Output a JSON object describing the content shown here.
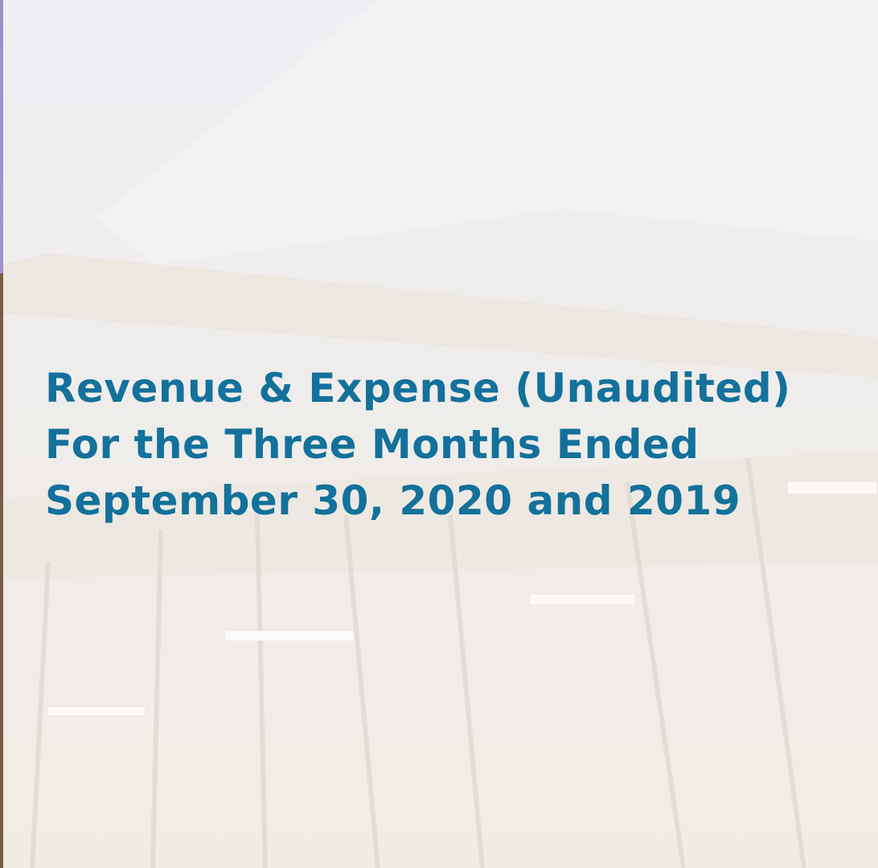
{
  "title": {
    "lines": [
      "Revenue & Expense (Unaudited)",
      "For the Three Months Ended",
      "September 30, 2020 and 2019"
    ]
  }
}
